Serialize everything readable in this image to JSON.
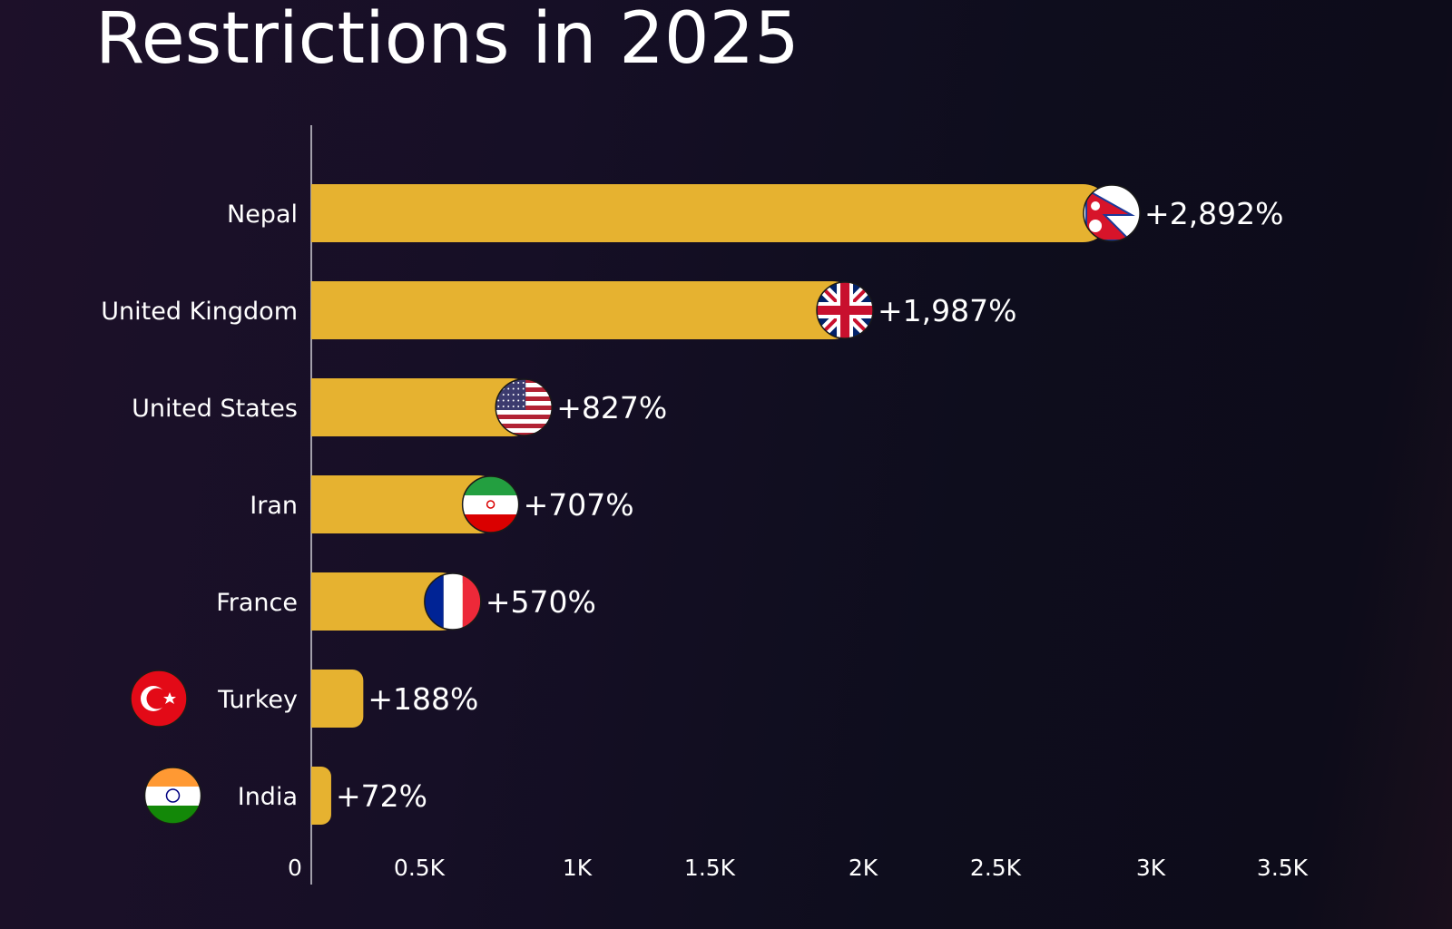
{
  "chart_data": {
    "type": "bar",
    "orientation": "horizontal",
    "title": "Restrictions in 2025",
    "categories": [
      "Nepal",
      "United Kingdom",
      "United States",
      "Iran",
      "France",
      "Turkey",
      "India"
    ],
    "values": [
      2892,
      1987,
      827,
      707,
      570,
      188,
      72
    ],
    "data_labels": [
      "+2,892%",
      "+1,987%",
      "+827%",
      "+707%",
      "+570%",
      "+188%",
      "+72%"
    ],
    "flags": [
      "nepal-flag",
      "uk-flag",
      "us-flag",
      "iran-flag",
      "france-flag",
      "turkey-flag",
      "india-flag"
    ],
    "xticks": [
      "0",
      "0.5K",
      "1K",
      "1.5K",
      "2K",
      "2.5K",
      "3K",
      "3.5K"
    ],
    "xlim": [
      0,
      3500
    ],
    "grid": false,
    "bar_color": "#e6b230",
    "background_color": "#140f22"
  }
}
